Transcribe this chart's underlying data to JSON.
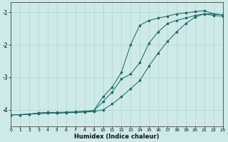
{
  "xlabel": "Humidex (Indice chaleur)",
  "background_color": "#ceeae8",
  "grid_color": "#aed4d0",
  "line_color": "#1c6b65",
  "xlim": [
    0,
    23
  ],
  "ylim": [
    -4.5,
    -0.7
  ],
  "yticks": [
    -4,
    -3,
    -2,
    -1
  ],
  "xticks": [
    0,
    1,
    2,
    3,
    4,
    5,
    6,
    7,
    8,
    9,
    10,
    11,
    12,
    13,
    14,
    15,
    16,
    17,
    18,
    19,
    20,
    21,
    22,
    23
  ],
  "line1_x": [
    0,
    1,
    2,
    3,
    4,
    5,
    6,
    7,
    8,
    9,
    10,
    11,
    12,
    13,
    14,
    15,
    16,
    17,
    18,
    19,
    20,
    21,
    22,
    23
  ],
  "line1_y": [
    -4.15,
    -4.15,
    -4.13,
    -4.1,
    -4.08,
    -4.1,
    -4.08,
    -4.07,
    -4.05,
    -4.03,
    -3.75,
    -3.45,
    -3.05,
    -2.9,
    -2.55,
    -1.95,
    -1.6,
    -1.35,
    -1.25,
    -1.18,
    -1.1,
    -1.05,
    -1.1,
    -1.12
  ],
  "line2_x": [
    0,
    1,
    2,
    3,
    4,
    5,
    6,
    7,
    8,
    9,
    10,
    11,
    12,
    13,
    14,
    15,
    16,
    17,
    18,
    19,
    20,
    21,
    22,
    23
  ],
  "line2_y": [
    -4.15,
    -4.15,
    -4.13,
    -4.1,
    -4.08,
    -4.08,
    -4.07,
    -4.06,
    -4.04,
    -4.02,
    -3.6,
    -3.3,
    -2.85,
    -2.0,
    -1.4,
    -1.25,
    -1.18,
    -1.12,
    -1.05,
    -1.02,
    -0.98,
    -0.95,
    -1.05,
    -1.08
  ],
  "line3_x": [
    0,
    1,
    2,
    3,
    4,
    5,
    6,
    7,
    8,
    9,
    10,
    11,
    12,
    13,
    14,
    15,
    16,
    17,
    18,
    19,
    20,
    21,
    22,
    23
  ],
  "line3_y": [
    -4.15,
    -4.15,
    -4.13,
    -4.12,
    -4.1,
    -4.1,
    -4.09,
    -4.08,
    -4.07,
    -4.05,
    -4.0,
    -3.82,
    -3.6,
    -3.35,
    -3.1,
    -2.65,
    -2.25,
    -1.9,
    -1.6,
    -1.35,
    -1.15,
    -1.05,
    -1.05,
    -1.08
  ]
}
